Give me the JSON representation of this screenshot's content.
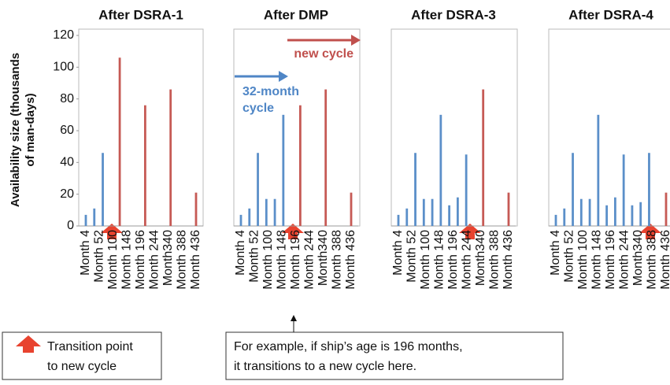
{
  "chart_data": [
    {
      "type": "bar",
      "title": "After DSRA-1",
      "ylabel_lines": [
        "Availability size (thousands",
        "of man-days)"
      ],
      "xtick_labels": [
        "Month 4",
        "Month 52",
        "Month 100",
        "Month 148",
        "Month 196",
        "Month 244",
        "Month340",
        "Month 388",
        "Month 436"
      ],
      "values": [
        7,
        11,
        46,
        null,
        106,
        null,
        null,
        76,
        null,
        null,
        86,
        null,
        null,
        21
      ],
      "colors": [
        "#5b8fc9",
        "#5b8fc9",
        "#5b8fc9",
        null,
        "#c65a55",
        null,
        null,
        "#c65a55",
        null,
        null,
        "#c65a55",
        null,
        null,
        "#c65a55"
      ],
      "ylim": [
        0,
        120
      ],
      "yticks": [
        0,
        20,
        40,
        60,
        80,
        100,
        120
      ]
    },
    {
      "type": "bar",
      "title": "After DMP",
      "annotations": {
        "red_lines": [
          "new cycle"
        ],
        "blue_lines": [
          "32-month",
          "cycle"
        ]
      },
      "xtick_labels": [
        "Month 4",
        "Month 52",
        "Month 100",
        "Month 148",
        "Month 196",
        "Month 244",
        "Month340",
        "Month 388",
        "Month 436"
      ],
      "values": [
        7,
        11,
        46,
        17,
        17,
        70,
        null,
        76,
        null,
        null,
        86,
        null,
        null,
        21
      ],
      "colors": [
        "#5b8fc9",
        "#5b8fc9",
        "#5b8fc9",
        "#5b8fc9",
        "#5b8fc9",
        "#5b8fc9",
        null,
        "#c65a55",
        null,
        null,
        "#c65a55",
        null,
        null,
        "#c65a55"
      ],
      "ylim": [
        0,
        120
      ]
    },
    {
      "type": "bar",
      "title": "After DSRA-3",
      "xtick_labels": [
        "Month 4",
        "Month 52",
        "Month 100",
        "Month 148",
        "Month 196",
        "Month 244",
        "Month340",
        "Month 388",
        "Month 436"
      ],
      "values": [
        7,
        11,
        46,
        17,
        17,
        70,
        13,
        18,
        45,
        null,
        86,
        null,
        null,
        21
      ],
      "colors": [
        "#5b8fc9",
        "#5b8fc9",
        "#5b8fc9",
        "#5b8fc9",
        "#5b8fc9",
        "#5b8fc9",
        "#5b8fc9",
        "#5b8fc9",
        "#5b8fc9",
        null,
        "#c65a55",
        null,
        null,
        "#c65a55"
      ],
      "ylim": [
        0,
        120
      ]
    },
    {
      "type": "bar",
      "title": "After DSRA-4",
      "xtick_labels": [
        "Month 4",
        "Month 52",
        "Month 100",
        "Month 148",
        "Month 196",
        "Month 244",
        "Month340",
        "Month 388",
        "Month 436"
      ],
      "values": [
        7,
        11,
        46,
        17,
        17,
        70,
        13,
        18,
        45,
        13,
        15,
        46,
        null,
        21
      ],
      "colors": [
        "#5b8fc9",
        "#5b8fc9",
        "#5b8fc9",
        "#5b8fc9",
        "#5b8fc9",
        "#5b8fc9",
        "#5b8fc9",
        "#5b8fc9",
        "#5b8fc9",
        "#5b8fc9",
        "#5b8fc9",
        "#5b8fc9",
        null,
        "#c65a55"
      ],
      "ylim": [
        0,
        120
      ]
    }
  ],
  "legend": {
    "lines": [
      "Transition point",
      "to new cycle"
    ]
  },
  "note": {
    "lines": [
      "For example, if ship’s age is 196 months,",
      "it transitions to a new cycle here."
    ]
  }
}
